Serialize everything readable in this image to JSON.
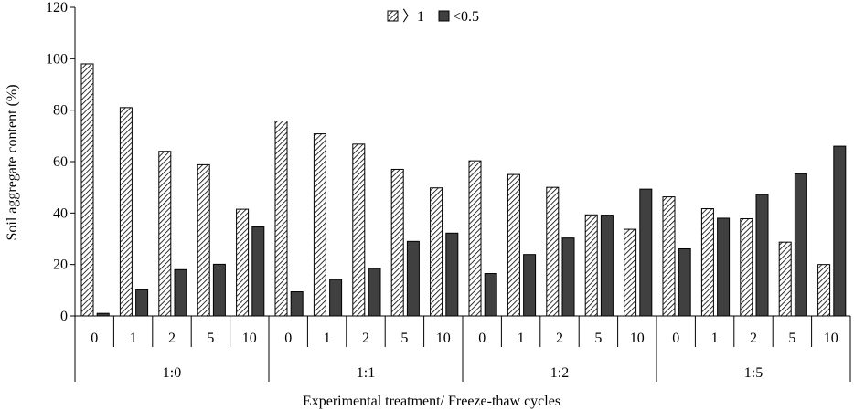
{
  "chart_data": {
    "type": "bar",
    "title": "",
    "ylabel": "Soil aggregate content (%)",
    "xlabel": "Experimental treatment/ Freeze-thaw cycles",
    "ylim": [
      0,
      120
    ],
    "yticks": [
      0,
      20,
      40,
      60,
      80,
      100,
      120
    ],
    "groups": [
      "1:0",
      "1:1",
      "1:2",
      "1:5"
    ],
    "categories": [
      "0",
      "1",
      "2",
      "5",
      "10",
      "0",
      "1",
      "2",
      "5",
      "10",
      "0",
      "1",
      "2",
      "5",
      "10",
      "0",
      "1",
      "2",
      "5",
      "10"
    ],
    "series": [
      {
        "name": "〉1",
        "pattern": "hatched",
        "values": [
          98,
          81,
          64,
          58.8,
          41.5,
          75.8,
          70.8,
          66.8,
          57,
          49.8,
          60.3,
          55,
          50,
          39.3,
          33.7,
          46.3,
          41.7,
          37.8,
          28.7,
          20
        ]
      },
      {
        "name": "<0.5",
        "color": "#404040",
        "values": [
          1,
          10.2,
          18,
          20.1,
          34.6,
          9.4,
          14.2,
          18.5,
          29,
          32.2,
          16.5,
          23.9,
          30.3,
          39.2,
          49.3,
          26.1,
          38,
          47.2,
          55.3,
          66
        ]
      }
    ],
    "legend": "top-center",
    "grid": false
  }
}
